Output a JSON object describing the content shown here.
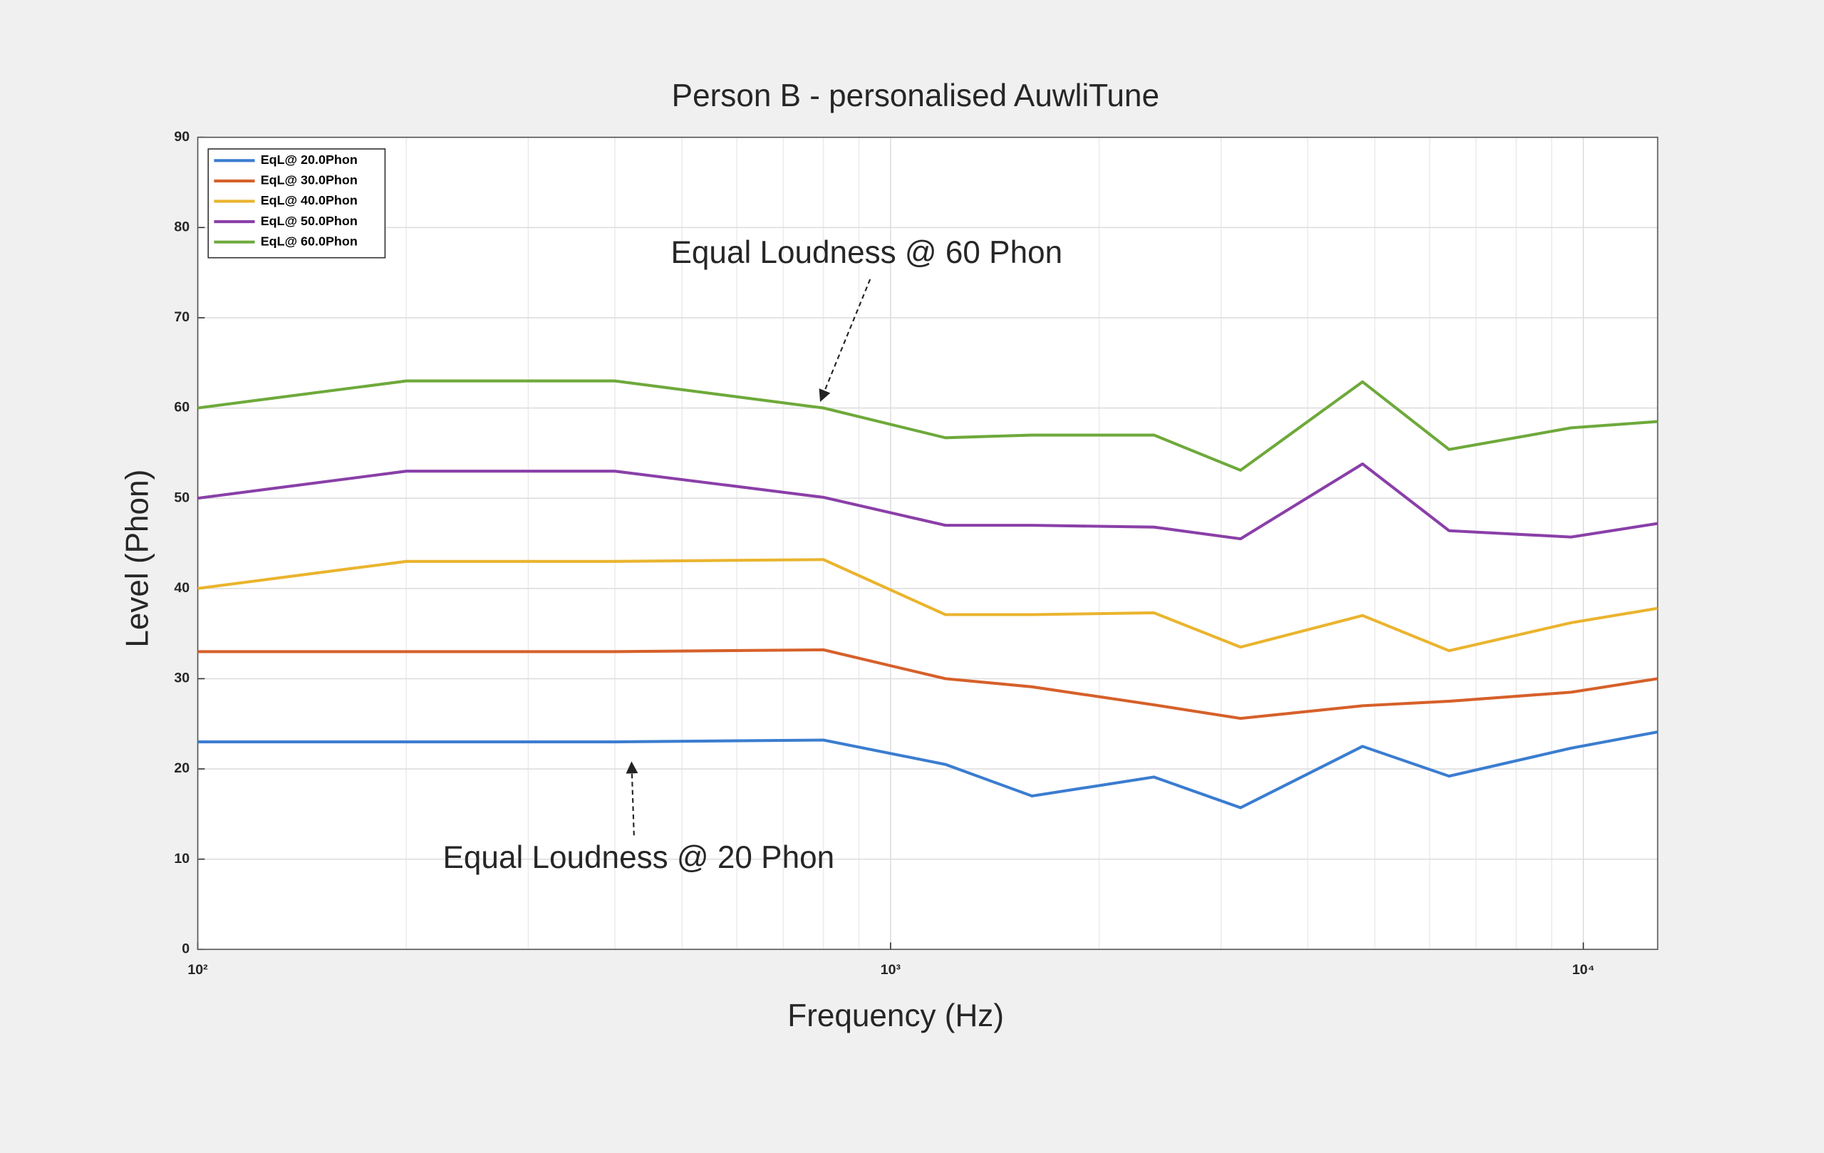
{
  "chart_data": {
    "type": "line",
    "title": "Person B - personalised AuwliTune",
    "xlabel": "Frequency (Hz)",
    "ylabel": "Level (Phon)",
    "x": [
      100,
      200,
      400,
      800,
      1200,
      1600,
      2400,
      3200,
      4800,
      6400,
      9600,
      12800
    ],
    "series": [
      {
        "name": "EqL@ 20.0Phon",
        "color": "#3b7dd0",
        "values": [
          23,
          23,
          23,
          23.2,
          20.5,
          17,
          19.1,
          15.7,
          22.5,
          19.2,
          22.3,
          24.1
        ]
      },
      {
        "name": "EqL@ 30.0Phon",
        "color": "#d6602a",
        "values": [
          33,
          33,
          33,
          33.2,
          30,
          29.1,
          27.1,
          25.6,
          27,
          27.5,
          28.5,
          30
        ]
      },
      {
        "name": "EqL@ 40.0Phon",
        "color": "#eab42e",
        "values": [
          40,
          43,
          43,
          43.2,
          37.1,
          37.1,
          37.3,
          33.5,
          37,
          33.1,
          36.2,
          37.8
        ]
      },
      {
        "name": "EqL@ 50.0Phon",
        "color": "#8a3fa8",
        "values": [
          50,
          53,
          53,
          50.1,
          47,
          47,
          46.8,
          45.5,
          53.8,
          46.4,
          45.7,
          47.2
        ]
      },
      {
        "name": "EqL@ 60.0Phon",
        "color": "#6ea93b",
        "values": [
          60,
          63,
          63,
          60,
          56.7,
          57,
          57,
          53.1,
          62.9,
          55.4,
          57.8,
          58.5
        ]
      }
    ],
    "xlim": [
      100,
      12800
    ],
    "xscale": "log",
    "xticks": [
      {
        "value": 100,
        "label": "10²"
      },
      {
        "value": 1000,
        "label": "10³"
      },
      {
        "value": 10000,
        "label": "10⁴"
      }
    ],
    "ylim": [
      0,
      90
    ],
    "yticks": [
      0,
      10,
      20,
      30,
      40,
      50,
      60,
      70,
      80,
      90
    ],
    "grid": true,
    "legend": "upper left",
    "annotations": [
      {
        "text": "Equal Loudness @ 60 Phon"
      },
      {
        "text": "Equal Loudness @ 20 Phon"
      }
    ]
  }
}
